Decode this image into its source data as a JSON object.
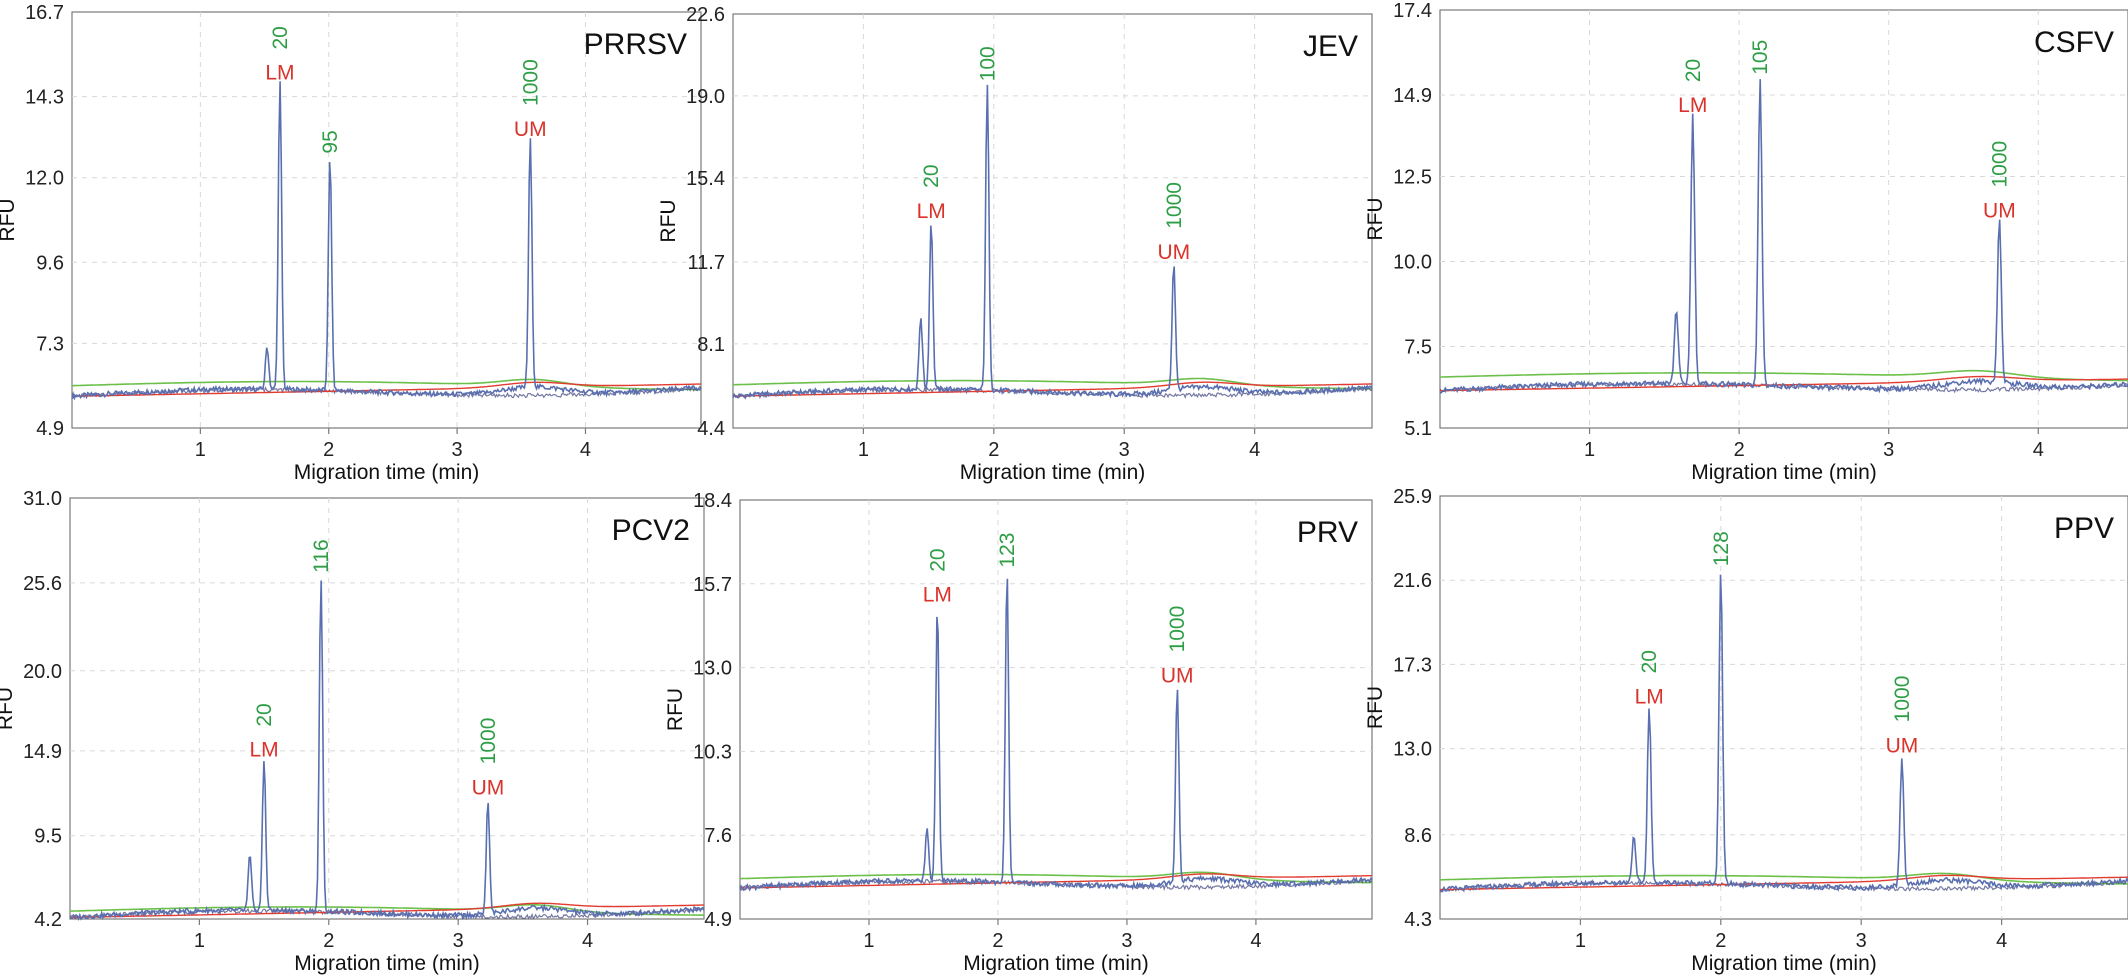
{
  "colors": {
    "trace_sample": "#5a6fb0",
    "trace_baseline_green": "#6cc04a",
    "trace_baseline_red": "#e23b30",
    "annotation_size": "#2e9e46",
    "annotation_marker": "#d9332b",
    "grid": "#d8d8d8",
    "frame": "#7a7a7a"
  },
  "chart_data": [
    {
      "type": "line",
      "panel_label": "PRRSV",
      "xlabel": "Migration time (min)",
      "ylabel": "RFU",
      "xlim": [
        0,
        4.9
      ],
      "ylim": [
        4.9,
        16.7
      ],
      "xticks": [
        "1",
        "2",
        "3",
        "4"
      ],
      "yticks": [
        "16.7",
        "14.3",
        "12.0",
        "9.6",
        "7.3",
        "4.9"
      ],
      "grid": true,
      "baseline": 5.8,
      "green_baseline": 6.1,
      "peaks": [
        {
          "time": 1.52,
          "height": 7.0
        },
        {
          "time": 1.62,
          "height": 14.5,
          "size_label": "20",
          "marker_label": "LM"
        },
        {
          "time": 2.01,
          "height": 12.4,
          "size_label": "95"
        },
        {
          "time": 3.57,
          "height": 12.9,
          "size_label": "1000",
          "marker_label": "UM"
        }
      ]
    },
    {
      "type": "line",
      "panel_label": "JEV",
      "xlabel": "Migration time (min)",
      "ylabel": "RFU",
      "xlim": [
        0,
        4.9
      ],
      "ylim": [
        4.4,
        22.6
      ],
      "xticks": [
        "1",
        "2",
        "3",
        "4"
      ],
      "yticks": [
        "22.6",
        "19.0",
        "15.4",
        "11.7",
        "8.1",
        "4.4"
      ],
      "grid": true,
      "baseline": 5.8,
      "green_baseline": 6.3,
      "peaks": [
        {
          "time": 1.44,
          "height": 9.0
        },
        {
          "time": 1.52,
          "height": 13.2,
          "size_label": "20",
          "marker_label": "LM"
        },
        {
          "time": 1.95,
          "height": 19.2,
          "size_label": "100"
        },
        {
          "time": 3.38,
          "height": 11.4,
          "size_label": "1000",
          "marker_label": "UM"
        }
      ]
    },
    {
      "type": "line",
      "panel_label": "CSFV",
      "xlabel": "Migration time (min)",
      "ylabel": "RFU",
      "xlim": [
        0,
        4.6
      ],
      "ylim": [
        5.1,
        17.4
      ],
      "xticks": [
        "1",
        "2",
        "3",
        "4"
      ],
      "yticks": [
        "17.4",
        "14.9",
        "12.5",
        "10.0",
        "7.5",
        "5.1"
      ],
      "grid": true,
      "baseline": 6.2,
      "green_baseline": 6.6,
      "peaks": [
        {
          "time": 1.58,
          "height": 8.4
        },
        {
          "time": 1.69,
          "height": 14.1,
          "size_label": "20",
          "marker_label": "LM"
        },
        {
          "time": 2.14,
          "height": 15.2,
          "size_label": "105"
        },
        {
          "time": 3.74,
          "height": 11.0,
          "size_label": "1000",
          "marker_label": "UM"
        }
      ]
    },
    {
      "type": "line",
      "panel_label": "PCV2",
      "xlabel": "Migration time (min)",
      "ylabel": "RFU",
      "xlim": [
        0,
        4.9
      ],
      "ylim": [
        4.2,
        31.0
      ],
      "xticks": [
        "1",
        "2",
        "3",
        "4"
      ],
      "yticks": [
        "31.0",
        "25.6",
        "20.0",
        "14.9",
        "9.5",
        "4.2"
      ],
      "grid": true,
      "baseline": 4.3,
      "green_baseline": 4.7,
      "peaks": [
        {
          "time": 1.39,
          "height": 7.8
        },
        {
          "time": 1.5,
          "height": 13.9,
          "size_label": "20",
          "marker_label": "LM"
        },
        {
          "time": 1.94,
          "height": 25.6,
          "size_label": "116"
        },
        {
          "time": 3.23,
          "height": 11.5,
          "size_label": "1000",
          "marker_label": "UM"
        }
      ]
    },
    {
      "type": "line",
      "panel_label": "PRV",
      "xlabel": "Migration time (min)",
      "ylabel": "RFU",
      "xlim": [
        0,
        4.9
      ],
      "ylim": [
        4.9,
        18.4
      ],
      "xticks": [
        "1",
        "2",
        "3",
        "4"
      ],
      "yticks": [
        "18.4",
        "15.7",
        "13.0",
        "10.3",
        "7.6",
        "4.9"
      ],
      "grid": true,
      "baseline": 5.9,
      "green_baseline": 6.2,
      "peaks": [
        {
          "time": 1.45,
          "height": 7.6
        },
        {
          "time": 1.53,
          "height": 14.8,
          "size_label": "20",
          "marker_label": "LM"
        },
        {
          "time": 2.07,
          "height": 15.9,
          "size_label": "123"
        },
        {
          "time": 3.39,
          "height": 12.2,
          "size_label": "1000",
          "marker_label": "UM"
        }
      ]
    },
    {
      "type": "line",
      "panel_label": "PPV",
      "xlabel": "Migration time (min)",
      "ylabel": "RFU",
      "xlim": [
        0,
        4.9
      ],
      "ylim": [
        4.3,
        25.9
      ],
      "xticks": [
        "1",
        "2",
        "3",
        "4"
      ],
      "yticks": [
        "25.9",
        "21.6",
        "17.3",
        "13.0",
        "8.6",
        "4.3"
      ],
      "grid": true,
      "baseline": 5.8,
      "green_baseline": 6.3,
      "peaks": [
        {
          "time": 1.38,
          "height": 8.1
        },
        {
          "time": 1.49,
          "height": 14.8,
          "size_label": "20",
          "marker_label": "LM"
        },
        {
          "time": 2.0,
          "height": 21.8,
          "size_label": "128"
        },
        {
          "time": 3.29,
          "height": 12.3,
          "size_label": "1000",
          "marker_label": "UM"
        }
      ]
    }
  ]
}
